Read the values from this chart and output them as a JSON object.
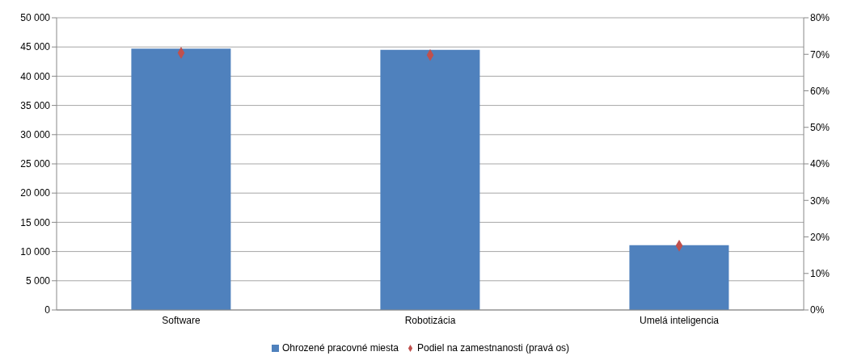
{
  "chart_data": {
    "type": "bar",
    "categories": [
      "Software",
      "Robotizácia",
      "Umelá inteligencia"
    ],
    "series": [
      {
        "name": "Ohrozené pracovné miesta",
        "color": "#4f81bd",
        "values": [
          44700,
          44500,
          11100
        ]
      },
      {
        "name": "Podiel na zamestnanosti (pravá os)",
        "type": "scatter",
        "axis": "y2",
        "color": "#c0504d",
        "values": [
          70.4,
          69.8,
          17.6
        ]
      }
    ],
    "ylim": [
      0,
      50000
    ],
    "yticks": [
      0,
      {
        "value": 5000,
        "label": "5 000"
      },
      {
        "value": 10000,
        "label": "10 000"
      },
      {
        "value": 15000,
        "label": "15 000"
      },
      {
        "value": 20000,
        "label": "20 000"
      },
      {
        "value": 25000,
        "label": "25 000"
      },
      {
        "value": 30000,
        "label": "30 000"
      },
      {
        "value": 35000,
        "label": "35 000"
      },
      {
        "value": 40000,
        "label": "40 000"
      },
      {
        "value": 45000,
        "label": "45 000"
      },
      {
        "value": 50000,
        "label": "50 000"
      }
    ],
    "y2lim": [
      0,
      80
    ],
    "y2ticks": [
      {
        "value": 0,
        "label": "0%"
      },
      {
        "value": 10,
        "label": "10%"
      },
      {
        "value": 20,
        "label": "20%"
      },
      {
        "value": 30,
        "label": "30%"
      },
      {
        "value": 40,
        "label": "40%"
      },
      {
        "value": 50,
        "label": "50%"
      },
      {
        "value": 60,
        "label": "60%"
      },
      {
        "value": 70,
        "label": "70%"
      },
      {
        "value": 80,
        "label": "80%"
      }
    ],
    "grid": "y",
    "legend": "bottom",
    "marker": "diamond"
  }
}
